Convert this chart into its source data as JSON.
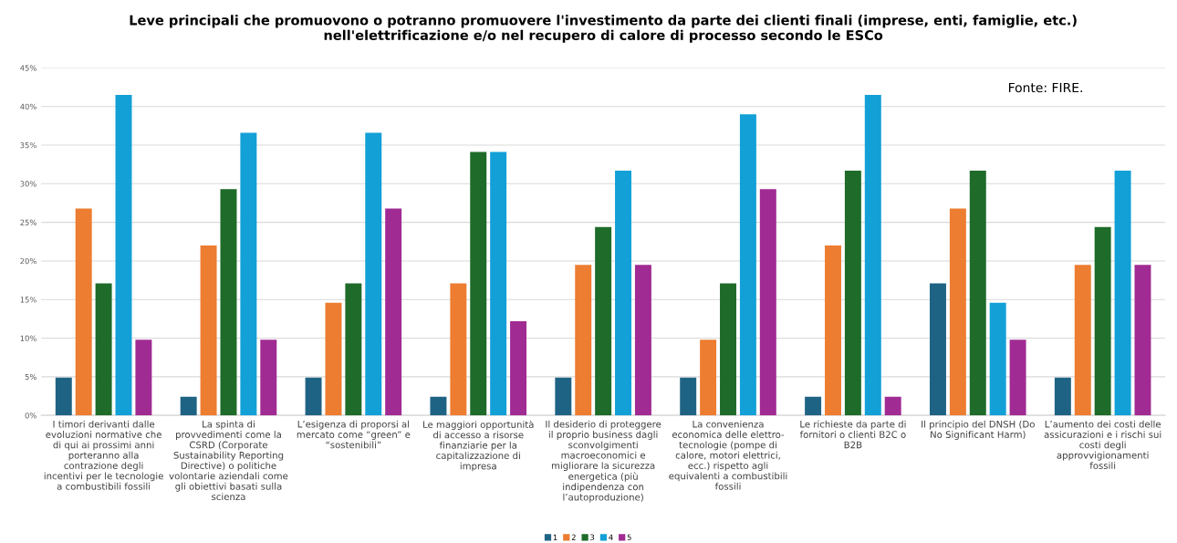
{
  "chart_data": {
    "type": "bar",
    "title": "Leve principali che promuovono o potranno promuovere l'investimento da parte dei clienti finali (imprese, enti, famiglie, etc.)\nnell'elettrificazione e/o nel recupero di calore di processo secondo le ESCo",
    "categories": [
      "I timori derivanti dalle\nevoluzioni normative che\ndi qui ai prossimi anni\nporteranno alla\ncontrazione degli\nincentivi per le tecnologie\na combustibili fossili",
      "La spinta di\nprovvedimenti come la\nCSRD (Corporate\nSustainability Reporting\nDirective) o politiche\nvolontarie aziendali come\ngli obiettivi basati sulla\nscienza",
      "L’esigenza di proporsi al\nmercato come “green” e\n“sostenibili”",
      "Le maggiori opportunità\ndi accesso a risorse\nfinanziarie per la\ncapitalizzazione di\nimpresa",
      "Il desiderio di proteggere\nil proprio business dagli\nsconvolgimenti\nmacroeconomici e\nmigliorare la sicurezza\nenergetica (più\nindipendenza con\nl’autoproduzione)",
      "La convenienza\neconomica delle elettro-\ntecnologie (pompe di\ncalore, motori elettrici,\necc.) rispetto agli\nequivalenti a combustibili\nfossili",
      "Le richieste da parte di\nfornitori o clienti B2C o\nB2B",
      "Il principio del DNSH (Do\nNo Significant Harm)",
      "L’aumento dei costi delle\nassicurazioni e i rischi sui\ncosti degli\napprovvigionamenti\nfossili"
    ],
    "series": [
      {
        "name": "1",
        "color": "#1f6384",
        "values": [
          4.9,
          2.4,
          4.9,
          2.4,
          4.9,
          4.9,
          2.4,
          17.1,
          4.9
        ]
      },
      {
        "name": "2",
        "color": "#ed7d31",
        "values": [
          26.8,
          22.0,
          14.6,
          17.1,
          19.5,
          9.8,
          22.0,
          26.8,
          19.5
        ]
      },
      {
        "name": "3",
        "color": "#1e6b2a",
        "values": [
          17.1,
          29.3,
          17.1,
          34.1,
          24.4,
          17.1,
          31.7,
          31.7,
          24.4
        ]
      },
      {
        "name": "4",
        "color": "#12a0d7",
        "values": [
          41.5,
          36.6,
          36.6,
          34.1,
          31.7,
          39.0,
          41.5,
          14.6,
          31.7
        ]
      },
      {
        "name": "5",
        "color": "#a02b93",
        "values": [
          9.8,
          9.8,
          26.8,
          12.2,
          19.5,
          29.3,
          2.4,
          9.8,
          19.5
        ]
      }
    ],
    "ylim": [
      0,
      45
    ],
    "yticks": [
      {
        "value": 0,
        "label": "0%"
      },
      {
        "value": 5,
        "label": "5%"
      },
      {
        "value": 10,
        "label": "10%"
      },
      {
        "value": 15,
        "label": "15%"
      },
      {
        "value": 20,
        "label": "20%"
      },
      {
        "value": 25,
        "label": "25%"
      },
      {
        "value": 30,
        "label": "30%"
      },
      {
        "value": 35,
        "label": "35%"
      },
      {
        "value": 40,
        "label": "40%"
      },
      {
        "value": 45,
        "label": "45%"
      }
    ],
    "grid": "y",
    "legend": "bottom",
    "annotations": [
      {
        "text": "Fonte: FIRE."
      }
    ]
  }
}
